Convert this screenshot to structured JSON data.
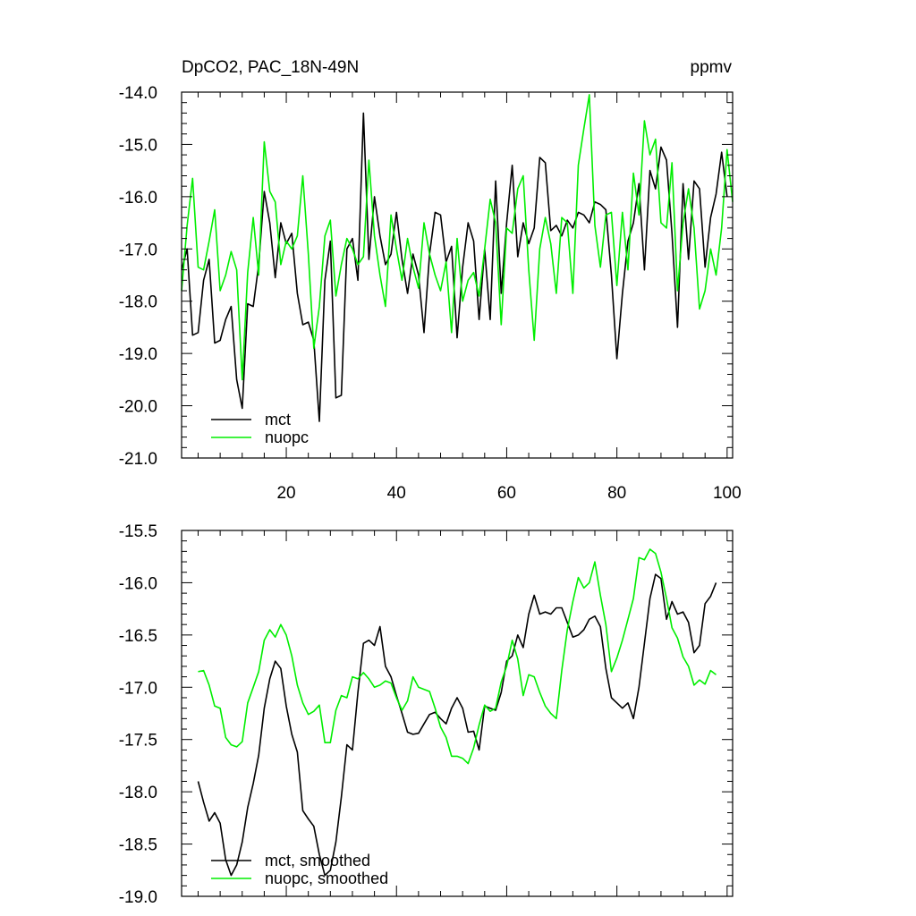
{
  "chart_data": [
    {
      "type": "line",
      "title": "DpCO2, PAC_18N-49N",
      "units": "ppmv",
      "xlim": [
        1,
        101
      ],
      "ylim": [
        -21.0,
        -14.0
      ],
      "xticks": [
        20,
        40,
        60,
        80,
        100
      ],
      "yticks": [
        -21.0,
        -20.0,
        -19.0,
        -18.0,
        -17.0,
        -16.0,
        -15.0,
        -14.0
      ],
      "ytick_labels": [
        "-21.0",
        "-20.0",
        "-19.0",
        "-18.0",
        "-17.0",
        "-16.0",
        "-15.0",
        "-14.0"
      ],
      "grid": false,
      "legend_position": "bottom-left",
      "series": [
        {
          "name": "mct",
          "color": "#000000",
          "x_start": 1,
          "values": [
            -17.4,
            -17.0,
            -18.65,
            -18.6,
            -17.6,
            -17.2,
            -18.8,
            -18.75,
            -18.35,
            -18.1,
            -19.5,
            -20.05,
            -18.05,
            -18.1,
            -17.3,
            -15.9,
            -16.5,
            -17.55,
            -16.5,
            -16.9,
            -16.7,
            -17.85,
            -18.45,
            -18.4,
            -18.75,
            -20.3,
            -17.6,
            -16.85,
            -19.85,
            -19.8,
            -17.0,
            -16.8,
            -17.6,
            -14.4,
            -17.2,
            -16.0,
            -16.75,
            -17.3,
            -17.1,
            -16.3,
            -17.2,
            -17.85,
            -17.1,
            -17.5,
            -18.6,
            -17.1,
            -16.3,
            -16.35,
            -17.25,
            -16.95,
            -18.7,
            -17.35,
            -16.5,
            -16.85,
            -18.35,
            -17.0,
            -18.35,
            -15.7,
            -17.85,
            -16.5,
            -15.4,
            -17.15,
            -16.5,
            -16.9,
            -16.6,
            -15.25,
            -15.35,
            -16.65,
            -16.55,
            -16.75,
            -16.45,
            -16.6,
            -16.3,
            -16.35,
            -16.5,
            -16.1,
            -16.15,
            -16.25,
            -17.5,
            -19.1,
            -17.85,
            -16.85,
            -16.5,
            -15.75,
            -17.4,
            -15.5,
            -15.85,
            -15.05,
            -15.3,
            -16.7,
            -18.5,
            -15.75,
            -17.2,
            -15.7,
            -15.85,
            -17.35,
            -16.4,
            -15.95,
            -15.15,
            -16.0
          ]
        },
        {
          "name": "nuopc",
          "color": "#00ee00",
          "x_start": 1,
          "values": [
            -17.8,
            -16.55,
            -15.65,
            -17.35,
            -17.4,
            -16.85,
            -16.25,
            -17.8,
            -17.5,
            -17.05,
            -17.4,
            -19.5,
            -17.45,
            -16.4,
            -17.5,
            -14.95,
            -15.9,
            -16.1,
            -17.3,
            -16.85,
            -17.0,
            -16.75,
            -15.6,
            -17.1,
            -18.9,
            -18.1,
            -16.75,
            -16.45,
            -17.9,
            -17.3,
            -16.8,
            -17.0,
            -17.3,
            -17.15,
            -15.3,
            -16.75,
            -17.5,
            -18.1,
            -16.35,
            -17.0,
            -17.6,
            -16.8,
            -17.35,
            -17.75,
            -16.5,
            -17.1,
            -17.5,
            -17.8,
            -17.25,
            -18.6,
            -16.8,
            -18.0,
            -17.6,
            -17.45,
            -17.9,
            -17.0,
            -16.05,
            -16.5,
            -18.45,
            -16.6,
            -16.7,
            -15.85,
            -15.6,
            -17.4,
            -18.75,
            -17.0,
            -16.4,
            -16.9,
            -17.85,
            -16.4,
            -16.5,
            -17.85,
            -15.4,
            -14.7,
            -14.05,
            -16.55,
            -17.35,
            -16.35,
            -16.3,
            -17.7,
            -16.3,
            -17.4,
            -15.55,
            -16.35,
            -14.55,
            -15.2,
            -14.9,
            -16.5,
            -16.6,
            -15.35,
            -17.8,
            -16.5,
            -15.85,
            -16.6,
            -18.15,
            -17.8,
            -17.0,
            -17.5,
            -16.6,
            -15.1,
            -16.1
          ]
        }
      ]
    },
    {
      "type": "line",
      "xlim": [
        1,
        101
      ],
      "ylim": [
        -19.0,
        -15.5
      ],
      "xticks": [
        20,
        40,
        60,
        80,
        100
      ],
      "yticks": [
        -19.0,
        -18.5,
        -18.0,
        -17.5,
        -17.0,
        -16.5,
        -16.0,
        -15.5
      ],
      "ytick_labels": [
        "-19.0",
        "-18.5",
        "-18.0",
        "-17.5",
        "-17.0",
        "-16.5",
        "-16.0",
        "-15.5"
      ],
      "grid": false,
      "legend_position": "bottom-left",
      "series": [
        {
          "name": "mct, smoothed",
          "color": "#000000",
          "x_start": 4,
          "values": [
            -17.9,
            -18.1,
            -18.28,
            -18.2,
            -18.3,
            -18.65,
            -18.8,
            -18.7,
            -18.48,
            -18.15,
            -17.92,
            -17.65,
            -17.2,
            -16.92,
            -16.75,
            -16.82,
            -17.18,
            -17.45,
            -17.62,
            -18.18,
            -18.26,
            -18.33,
            -18.6,
            -18.8,
            -18.75,
            -18.48,
            -18.05,
            -17.55,
            -17.6,
            -17.05,
            -16.58,
            -16.55,
            -16.6,
            -16.42,
            -16.8,
            -16.9,
            -17.08,
            -17.25,
            -17.43,
            -17.45,
            -17.44,
            -17.35,
            -17.26,
            -17.24,
            -17.3,
            -17.35,
            -17.2,
            -17.1,
            -17.2,
            -17.43,
            -17.42,
            -17.6,
            -17.18,
            -17.2,
            -17.22,
            -17.05,
            -16.75,
            -16.7,
            -16.5,
            -16.62,
            -16.3,
            -16.12,
            -16.3,
            -16.28,
            -16.3,
            -16.24,
            -16.24,
            -16.38,
            -16.52,
            -16.5,
            -16.45,
            -16.35,
            -16.32,
            -16.42,
            -16.82,
            -17.1,
            -17.15,
            -17.2,
            -17.15,
            -17.3,
            -17.0,
            -16.58,
            -16.15,
            -15.92,
            -15.96,
            -16.35,
            -16.18,
            -16.3,
            -16.28,
            -16.38,
            -16.67,
            -16.6,
            -16.2,
            -16.13,
            -16.0
          ]
        },
        {
          "name": "nuopc, smoothed",
          "color": "#00ee00",
          "x_start": 4,
          "values": [
            -16.85,
            -16.84,
            -16.98,
            -17.18,
            -17.2,
            -17.48,
            -17.55,
            -17.57,
            -17.52,
            -17.15,
            -17.0,
            -16.85,
            -16.55,
            -16.45,
            -16.52,
            -16.4,
            -16.5,
            -16.7,
            -16.98,
            -17.15,
            -17.26,
            -17.23,
            -17.17,
            -17.53,
            -17.53,
            -17.22,
            -17.08,
            -17.1,
            -16.9,
            -16.92,
            -16.86,
            -16.92,
            -17.0,
            -16.98,
            -16.94,
            -16.96,
            -17.1,
            -17.22,
            -17.13,
            -16.9,
            -17.0,
            -17.02,
            -17.04,
            -17.2,
            -17.38,
            -17.48,
            -17.66,
            -17.66,
            -17.68,
            -17.73,
            -17.58,
            -17.36,
            -17.17,
            -17.23,
            -17.2,
            -16.95,
            -16.8,
            -16.55,
            -16.73,
            -17.08,
            -16.88,
            -16.9,
            -17.05,
            -17.18,
            -17.25,
            -17.3,
            -16.84,
            -16.45,
            -16.18,
            -15.95,
            -16.05,
            -16.0,
            -15.8,
            -16.12,
            -16.4,
            -16.85,
            -16.72,
            -16.55,
            -16.35,
            -16.15,
            -15.76,
            -15.78,
            -15.68,
            -15.72,
            -15.9,
            -16.15,
            -16.43,
            -16.53,
            -16.71,
            -16.8,
            -16.98,
            -16.93,
            -16.97,
            -16.84,
            -16.88
          ]
        }
      ]
    }
  ]
}
